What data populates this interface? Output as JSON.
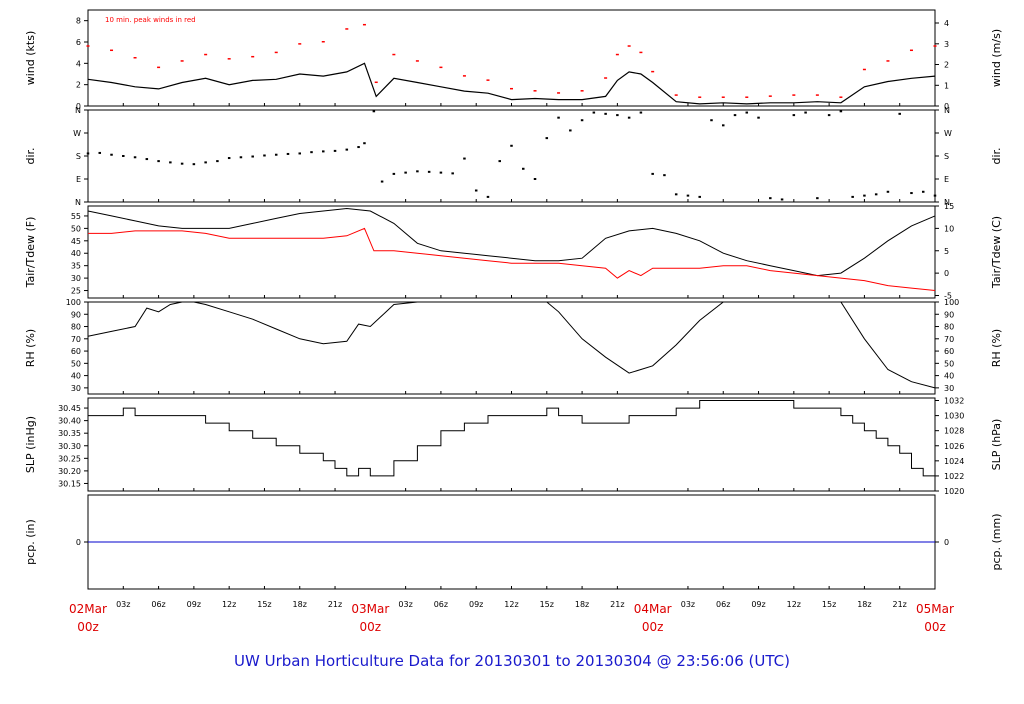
{
  "title": "UW Urban Horticulture Data for 20130301  to  20130304 @ 23:56:06  (UTC)",
  "colors": {
    "background": "#ffffff",
    "axis": "#000000",
    "primary_series": "#000000",
    "secondary_series": "#ff0000",
    "precip_line": "#0000cc",
    "title_text": "#1a1acc",
    "date_labels": "#dd0000"
  },
  "x_axis": {
    "tick_labels": [
      "03z",
      "06z",
      "09z",
      "12z",
      "15z",
      "18z",
      "21z",
      "03z",
      "06z",
      "09z",
      "12z",
      "15z",
      "18z",
      "21z",
      "03z",
      "06z",
      "09z",
      "12z",
      "15z",
      "18z",
      "21z"
    ],
    "tick_hours": [
      3,
      6,
      9,
      12,
      15,
      18,
      21,
      27,
      30,
      33,
      36,
      39,
      42,
      45,
      51,
      54,
      57,
      60,
      63,
      66,
      69
    ],
    "day_labels": [
      {
        "date": "02Mar",
        "time": "00z",
        "hour": 0
      },
      {
        "date": "03Mar",
        "time": "00z",
        "hour": 24
      },
      {
        "date": "04Mar",
        "time": "00z",
        "hour": 48
      },
      {
        "date": "05Mar",
        "time": "00z",
        "hour": 72
      }
    ]
  },
  "chart_data": [
    {
      "id": "wind",
      "type": "line",
      "ylabel_left": "wind (kts)",
      "ylabel_right": "wind (m/s)",
      "ylim": [
        0,
        9
      ],
      "left_ticks": [
        "0",
        "2",
        "4",
        "6",
        "8"
      ],
      "left_tick_values": [
        0,
        2,
        4,
        6,
        8
      ],
      "right_ticks": [
        "0",
        "1",
        "2",
        "3",
        "4"
      ],
      "right_tick_values_kts": [
        0,
        1.94,
        3.89,
        5.83,
        7.78
      ],
      "annotation": "10 min. peak winds in red",
      "series": [
        {
          "name": "wind",
          "color": "#000000",
          "style": "line",
          "x": [
            0,
            2,
            4,
            6,
            8,
            10,
            12,
            14,
            16,
            18,
            20,
            22,
            23.5,
            24.5,
            26,
            28,
            30,
            32,
            34,
            36,
            38,
            40,
            42,
            44,
            45,
            46,
            47,
            48,
            50,
            52,
            54,
            56,
            58,
            60,
            62,
            64,
            66,
            68,
            70,
            72
          ],
          "y": [
            2.5,
            2.2,
            1.8,
            1.6,
            2.2,
            2.6,
            2.0,
            2.4,
            2.5,
            3.0,
            2.8,
            3.2,
            4.0,
            0.9,
            2.6,
            2.2,
            1.8,
            1.4,
            1.2,
            0.6,
            0.7,
            0.6,
            0.6,
            0.9,
            2.4,
            3.2,
            3.0,
            2.2,
            0.4,
            0.2,
            0.3,
            0.2,
            0.3,
            0.3,
            0.4,
            0.3,
            1.8,
            2.3,
            2.6,
            2.8
          ]
        },
        {
          "name": "peak",
          "color": "#ff0000",
          "style": "dots",
          "x": [
            0,
            2,
            4,
            6,
            8,
            10,
            12,
            14,
            16,
            18,
            20,
            22,
            23.5,
            24.5,
            26,
            28,
            30,
            32,
            34,
            36,
            38,
            40,
            42,
            44,
            45,
            46,
            47,
            48,
            50,
            52,
            54,
            56,
            58,
            60,
            62,
            64,
            66,
            68,
            70,
            72
          ],
          "y": [
            5.6,
            5.2,
            4.5,
            3.6,
            4.2,
            4.8,
            4.4,
            4.6,
            5.0,
            5.8,
            6.0,
            7.2,
            7.6,
            2.2,
            4.8,
            4.2,
            3.6,
            2.8,
            2.4,
            1.6,
            1.4,
            1.2,
            1.4,
            2.6,
            4.8,
            5.6,
            5.0,
            3.2,
            1.0,
            0.8,
            0.8,
            0.8,
            0.9,
            1.0,
            1.0,
            0.8,
            3.4,
            4.2,
            5.2,
            5.6
          ]
        }
      ]
    },
    {
      "id": "direction",
      "type": "scatter",
      "ylabel_left": "dir.",
      "ylabel_right": "dir.",
      "ylim": [
        0,
        360
      ],
      "left_ticks": [
        "N",
        "E",
        "S",
        "W",
        "N"
      ],
      "right_ticks": [
        "N",
        "E",
        "S",
        "W",
        "N"
      ],
      "tick_values": [
        0,
        90,
        180,
        270,
        360
      ],
      "series": [
        {
          "name": "direction",
          "color": "#000000",
          "x": [
            0,
            1,
            2,
            3,
            4,
            5,
            6,
            7,
            8,
            9,
            10,
            11,
            12,
            13,
            14,
            15,
            16,
            17,
            18,
            19,
            20,
            21,
            22,
            23,
            23.5,
            24.3,
            25,
            26,
            27,
            28,
            29,
            30,
            31,
            32,
            33,
            34,
            35,
            36,
            37,
            38,
            39,
            40,
            41,
            42,
            43,
            44,
            45,
            46,
            47,
            48,
            49,
            50,
            51,
            52,
            53,
            54,
            55,
            56,
            57,
            58,
            59,
            60,
            61,
            62,
            63,
            64,
            65,
            66,
            67,
            68,
            69,
            70,
            71,
            72
          ],
          "y": [
            190,
            192,
            185,
            180,
            175,
            168,
            160,
            155,
            150,
            148,
            155,
            160,
            172,
            175,
            178,
            182,
            185,
            188,
            190,
            195,
            198,
            200,
            205,
            215,
            230,
            355,
            80,
            110,
            115,
            120,
            118,
            115,
            112,
            170,
            45,
            20,
            160,
            220,
            130,
            90,
            250,
            330,
            280,
            320,
            350,
            345,
            340,
            330,
            350,
            110,
            105,
            30,
            25,
            20,
            320,
            300,
            340,
            350,
            330,
            15,
            10,
            340,
            350,
            15,
            340,
            355,
            20,
            25,
            30,
            40,
            345,
            35,
            40,
            25
          ]
        }
      ]
    },
    {
      "id": "temperature",
      "type": "line",
      "ylabel_left": "Tair/Tdew (F)",
      "ylabel_right": "Tair/Tdew (C)",
      "ylim": [
        22,
        59
      ],
      "left_ticks": [
        "25",
        "30",
        "35",
        "40",
        "45",
        "50",
        "55"
      ],
      "left_tick_values": [
        25,
        30,
        35,
        40,
        45,
        50,
        55
      ],
      "right_ticks": [
        "-5",
        "0",
        "5",
        "10",
        "15"
      ],
      "right_tick_values_f": [
        23,
        32,
        41,
        50,
        59
      ],
      "series": [
        {
          "name": "Tair",
          "color": "#000000",
          "x": [
            0,
            2,
            4,
            6,
            8,
            10,
            12,
            14,
            16,
            18,
            20,
            22,
            24,
            26,
            28,
            30,
            32,
            34,
            36,
            38,
            40,
            42,
            44,
            46,
            48,
            50,
            52,
            54,
            56,
            58,
            60,
            62,
            64,
            66,
            68,
            70,
            72
          ],
          "y": [
            57,
            55,
            53,
            51,
            50,
            50,
            50,
            52,
            54,
            56,
            57,
            58,
            57,
            52,
            44,
            41,
            40,
            39,
            38,
            37,
            37,
            38,
            46,
            49,
            50,
            48,
            45,
            40,
            37,
            35,
            33,
            31,
            32,
            38,
            45,
            51,
            55
          ]
        },
        {
          "name": "Tdew",
          "color": "#ff0000",
          "x": [
            0,
            2,
            4,
            6,
            8,
            10,
            12,
            14,
            16,
            18,
            20,
            22,
            23.5,
            24.3,
            26,
            28,
            30,
            32,
            34,
            36,
            38,
            40,
            42,
            44,
            45,
            46,
            47,
            48,
            50,
            52,
            54,
            56,
            58,
            60,
            62,
            64,
            66,
            68,
            70,
            72
          ],
          "y": [
            48,
            48,
            49,
            49,
            49,
            48,
            46,
            46,
            46,
            46,
            46,
            47,
            50,
            41,
            41,
            40,
            39,
            38,
            37,
            36,
            36,
            36,
            35,
            34,
            30,
            33,
            31,
            34,
            34,
            34,
            35,
            35,
            33,
            32,
            31,
            30,
            29,
            27,
            26,
            25
          ]
        }
      ]
    },
    {
      "id": "humidity",
      "type": "line",
      "ylabel_left": "RH (%)",
      "ylabel_right": "RH (%)",
      "ylim": [
        25,
        100
      ],
      "left_ticks": [
        "30",
        "40",
        "50",
        "60",
        "70",
        "80",
        "90",
        "100"
      ],
      "right_ticks": [
        "30",
        "40",
        "50",
        "60",
        "70",
        "80",
        "90",
        "100"
      ],
      "tick_values": [
        30,
        40,
        50,
        60,
        70,
        80,
        90,
        100
      ],
      "series": [
        {
          "name": "RH",
          "color": "#000000",
          "x": [
            0,
            2,
            4,
            5,
            6,
            7,
            8,
            9,
            10,
            12,
            14,
            16,
            18,
            20,
            22,
            23,
            24,
            26,
            28,
            30,
            32,
            34,
            36,
            38,
            39,
            40,
            42,
            44,
            46,
            47,
            48,
            50,
            52,
            54,
            56,
            58,
            60,
            62,
            64,
            66,
            68,
            70,
            72
          ],
          "y": [
            72,
            76,
            80,
            95,
            92,
            98,
            100,
            100,
            98,
            92,
            86,
            78,
            70,
            66,
            68,
            82,
            80,
            98,
            100,
            100,
            100,
            100,
            100,
            100,
            100,
            92,
            70,
            55,
            42,
            45,
            48,
            65,
            85,
            100,
            100,
            100,
            100,
            100,
            100,
            70,
            45,
            35,
            30
          ]
        }
      ]
    },
    {
      "id": "pressure",
      "type": "line",
      "ylabel_left": "SLP (inHg)",
      "ylabel_right": "SLP (hPa)",
      "ylim": [
        30.12,
        30.49
      ],
      "left_ticks": [
        "30.15",
        "30.20",
        "30.25",
        "30.30",
        "30.35",
        "30.40",
        "30.45"
      ],
      "left_tick_values": [
        30.15,
        30.2,
        30.25,
        30.3,
        30.35,
        30.4,
        30.45
      ],
      "right_ticks": [
        "1020",
        "1022",
        "1024",
        "1026",
        "1028",
        "1030",
        "1032"
      ],
      "right_tick_values_inhg": [
        30.12,
        30.18,
        30.24,
        30.3,
        30.36,
        30.42,
        30.48
      ],
      "series": [
        {
          "name": "SLP",
          "color": "#000000",
          "x": [
            0,
            2,
            3,
            4,
            6,
            8,
            10,
            12,
            14,
            16,
            18,
            20,
            21,
            22,
            23,
            24,
            26,
            28,
            30,
            32,
            34,
            36,
            38,
            39,
            40,
            42,
            44,
            46,
            48,
            50,
            52,
            54,
            56,
            58,
            60,
            62,
            64,
            65,
            66,
            67,
            68,
            69,
            70,
            71,
            72
          ],
          "y": [
            30.42,
            30.42,
            30.45,
            30.42,
            30.42,
            30.42,
            30.39,
            30.36,
            30.33,
            30.3,
            30.27,
            30.24,
            30.21,
            30.18,
            30.21,
            30.18,
            30.24,
            30.3,
            30.36,
            30.39,
            30.42,
            30.42,
            30.42,
            30.45,
            30.42,
            30.39,
            30.39,
            30.42,
            30.42,
            30.45,
            30.48,
            30.48,
            30.48,
            30.48,
            30.45,
            30.45,
            30.42,
            30.39,
            30.36,
            30.33,
            30.3,
            30.27,
            30.21,
            30.18,
            30.15
          ]
        }
      ]
    },
    {
      "id": "precip",
      "type": "line",
      "ylabel_left": "pcp. (in)",
      "ylabel_right": "pcp. (mm)",
      "ylim": [
        -1,
        1
      ],
      "left_ticks": [
        "0"
      ],
      "right_ticks": [
        "0"
      ],
      "tick_values": [
        0
      ],
      "series": [
        {
          "name": "precip",
          "color": "#0000cc",
          "x": [
            0,
            72
          ],
          "y": [
            0,
            0
          ]
        }
      ]
    }
  ]
}
